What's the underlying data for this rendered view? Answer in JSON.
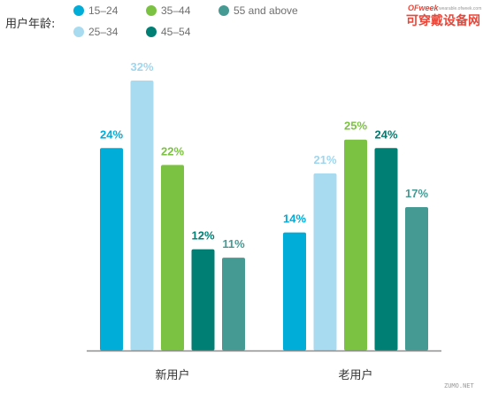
{
  "chart_data": {
    "type": "bar",
    "title": "",
    "xlabel": "",
    "ylabel": "",
    "ylim": [
      0,
      35
    ],
    "grid": false,
    "legend_title": "用户年龄:",
    "legend_position": "top-left",
    "categories": [
      "新用户",
      "老用户"
    ],
    "series": [
      {
        "name": "15–24",
        "color": "#00acd8",
        "label_color": "#00acd8",
        "values": [
          24,
          14
        ],
        "labels": [
          "24%",
          "14%"
        ]
      },
      {
        "name": "25–34",
        "color": "#a8dbf0",
        "label_color": "#9fd6ee",
        "values": [
          32,
          21
        ],
        "labels": [
          "32%",
          "21%"
        ]
      },
      {
        "name": "35–44",
        "color": "#7cc242",
        "label_color": "#7cc242",
        "values": [
          22,
          25
        ],
        "labels": [
          "22%",
          "25%"
        ]
      },
      {
        "name": "45–54",
        "color": "#007f74",
        "label_color": "#007f74",
        "values": [
          12,
          24
        ],
        "labels": [
          "12%",
          "24%"
        ]
      },
      {
        "name": "55 and above",
        "color": "#469a94",
        "label_color": "#469a94",
        "values": [
          11,
          17
        ],
        "labels": [
          "11%",
          "17%"
        ]
      }
    ]
  },
  "watermark": {
    "logo": "OFweek",
    "url": "wearable.ofweek.com",
    "brand": "可穿戴设备网",
    "corner": "ZUMO.NET"
  }
}
